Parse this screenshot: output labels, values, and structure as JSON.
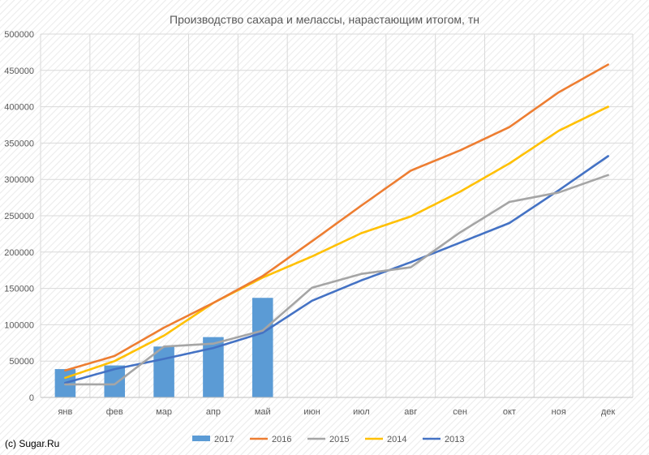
{
  "credit": "(c) Sugar.Ru",
  "colors": {
    "grid": "#d9d9d9",
    "hatch": "#ececec",
    "text": "#595959"
  },
  "chart_data": {
    "type": "bar+line",
    "title": "Производство сахара и мелассы, нарастающим итогом, тн",
    "xlabel": "",
    "ylabel": "",
    "categories": [
      "янв",
      "фев",
      "мар",
      "апр",
      "май",
      "июн",
      "июл",
      "авг",
      "сен",
      "окт",
      "ноя",
      "дек"
    ],
    "ylim": [
      0,
      500000
    ],
    "yticks": [
      0,
      50000,
      100000,
      150000,
      200000,
      250000,
      300000,
      350000,
      400000,
      450000,
      500000
    ],
    "ytick_labels": [
      "0",
      "50000",
      "100000",
      "150000",
      "200000",
      "250000",
      "300000",
      "350000",
      "400000",
      "450000",
      "500000"
    ],
    "grid": true,
    "legend_position": "bottom",
    "series": [
      {
        "name": "2017",
        "type": "bar",
        "color": "#5b9bd5",
        "values": [
          39000,
          44000,
          70000,
          83000,
          137000,
          null,
          null,
          null,
          null,
          null,
          null,
          null
        ]
      },
      {
        "name": "2016",
        "type": "line",
        "color": "#ed7d31",
        "values": [
          37000,
          57000,
          96000,
          130000,
          167000,
          215000,
          264000,
          312000,
          340000,
          372000,
          420000,
          458000
        ]
      },
      {
        "name": "2015",
        "type": "line",
        "color": "#a5a5a5",
        "values": [
          18000,
          18000,
          70000,
          74000,
          92000,
          151000,
          170000,
          179000,
          227000,
          269000,
          282000,
          306000
        ]
      },
      {
        "name": "2014",
        "type": "line",
        "color": "#ffc000",
        "values": [
          27000,
          50000,
          85000,
          130000,
          165000,
          194000,
          226000,
          249000,
          283000,
          322000,
          367000,
          400000
        ]
      },
      {
        "name": "2013",
        "type": "line",
        "color": "#4472c4",
        "values": [
          20000,
          39000,
          53000,
          68000,
          89000,
          133000,
          161000,
          186000,
          213000,
          240000,
          285000,
          332000
        ]
      }
    ]
  }
}
